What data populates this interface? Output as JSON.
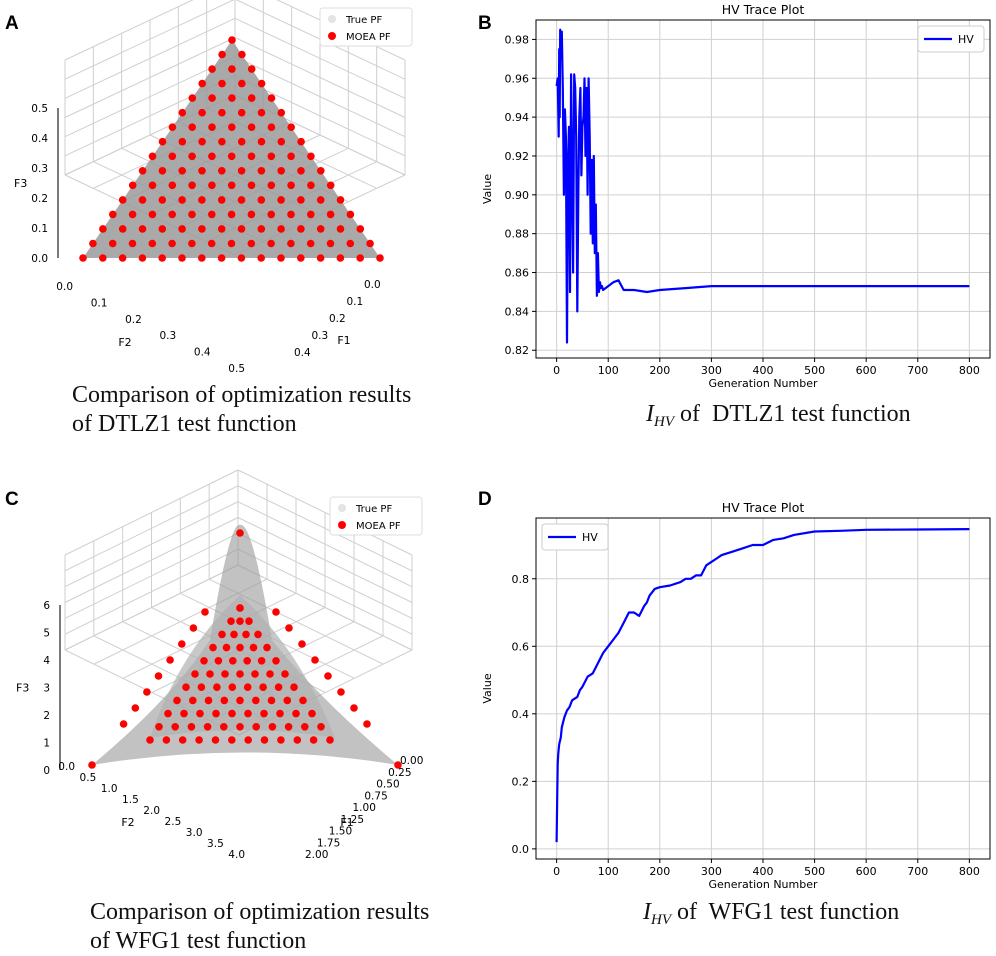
{
  "panels": {
    "A": {
      "letter": "A",
      "caption_line1": "Comparison of optimization results",
      "caption_line2": "of DTLZ1 test function"
    },
    "B": {
      "letter": "B",
      "caption_main": "I",
      "caption_sub": "HV",
      "caption_rest": " of  DTLZ1 test function"
    },
    "C": {
      "letter": "C",
      "caption_line1": "Comparison of optimization results",
      "caption_line2": "of WFG1 test function"
    },
    "D": {
      "letter": "D",
      "caption_main": "I",
      "caption_sub": "HV",
      "caption_rest": " of  WFG1 test function"
    }
  },
  "colors": {
    "true_pf": "#9a9a9a",
    "moea_pf": "#ff0000",
    "hv_line": "#0000ff",
    "grid": "#d0d0d0",
    "axis": "#000000"
  },
  "chart_data": [
    {
      "id": "A",
      "type": "scatter",
      "title": "",
      "xlabel": "F1",
      "ylabel": "F2",
      "zlabel": "F3",
      "xticks": [
        "0.0",
        "0.1",
        "0.2",
        "0.3",
        "0.4"
      ],
      "yticks": [
        "0.0",
        "0.1",
        "0.2",
        "0.3",
        "0.4",
        "0.5"
      ],
      "zticks": [
        "0.0",
        "0.1",
        "0.2",
        "0.3",
        "0.4",
        "0.5"
      ],
      "xlim": [
        0,
        0.5
      ],
      "ylim": [
        0,
        0.5
      ],
      "zlim": [
        0,
        0.5
      ],
      "legend": [
        "True PF",
        "MOEA PF"
      ],
      "legend_loc": "top-right",
      "series": [
        {
          "name": "True PF",
          "description_surface": "plane F1+F2+F3=0.5"
        },
        {
          "name": "MOEA PF",
          "grid_divisions": 15,
          "sum": 0.5
        }
      ]
    },
    {
      "id": "B",
      "type": "line",
      "title": "HV Trace Plot",
      "xlabel": "Generation Number",
      "ylabel": "Value",
      "xlim": [
        -40,
        840
      ],
      "ylim": [
        0.816,
        0.99
      ],
      "xticks": [
        "0",
        "100",
        "200",
        "300",
        "400",
        "500",
        "600",
        "700",
        "800"
      ],
      "yticks": [
        "0.82",
        "0.84",
        "0.86",
        "0.88",
        "0.90",
        "0.92",
        "0.94",
        "0.96",
        "0.98"
      ],
      "legend": [
        "HV"
      ],
      "legend_loc": "top-right",
      "series": [
        {
          "name": "HV",
          "x": [
            0,
            2,
            4,
            5,
            6,
            7,
            8,
            10,
            12,
            14,
            16,
            18,
            20,
            22,
            24,
            26,
            28,
            30,
            32,
            34,
            36,
            38,
            40,
            42,
            44,
            46,
            48,
            50,
            52,
            54,
            56,
            58,
            60,
            62,
            64,
            66,
            68,
            70,
            72,
            74,
            76,
            78,
            80,
            82,
            84,
            86,
            88,
            90,
            95,
            100,
            110,
            120,
            130,
            150,
            175,
            200,
            250,
            300,
            400,
            500,
            600,
            700,
            800
          ],
          "y": [
            0.956,
            0.96,
            0.93,
            0.975,
            0.94,
            0.985,
            0.97,
            0.984,
            0.955,
            0.9,
            0.944,
            0.93,
            0.824,
            0.918,
            0.935,
            0.85,
            0.962,
            0.91,
            0.86,
            0.962,
            0.955,
            0.93,
            0.84,
            0.9,
            0.94,
            0.955,
            0.91,
            0.935,
            0.94,
            0.96,
            0.92,
            0.955,
            0.9,
            0.96,
            0.93,
            0.88,
            0.918,
            0.875,
            0.92,
            0.87,
            0.895,
            0.848,
            0.87,
            0.85,
            0.855,
            0.852,
            0.853,
            0.851,
            0.852,
            0.853,
            0.855,
            0.856,
            0.851,
            0.851,
            0.85,
            0.851,
            0.852,
            0.853,
            0.853,
            0.853,
            0.853,
            0.853,
            0.853
          ]
        }
      ]
    },
    {
      "id": "C",
      "type": "scatter",
      "title": "",
      "xlabel": "F1",
      "ylabel": "F2",
      "zlabel": "F3",
      "xticks": [
        "0.00",
        "0.25",
        "0.50",
        "0.75",
        "1.00",
        "1.25",
        "1.50",
        "1.75",
        "2.00"
      ],
      "yticks": [
        "0.0",
        "0.5",
        "1.0",
        "1.5",
        "2.0",
        "2.5",
        "3.0",
        "3.5",
        "4.0"
      ],
      "zticks": [
        "0",
        "1",
        "2",
        "3",
        "4",
        "5",
        "6"
      ],
      "xlim": [
        0,
        2
      ],
      "ylim": [
        0,
        4
      ],
      "zlim": [
        0,
        6
      ],
      "legend": [
        "True PF",
        "MOEA PF"
      ],
      "legend_loc": "top-right",
      "series": [
        {
          "name": "True PF",
          "description_surface": "WFG1 front"
        },
        {
          "name": "MOEA PF",
          "rows": 10
        }
      ]
    },
    {
      "id": "D",
      "type": "line",
      "title": "HV Trace Plot",
      "xlabel": "Generation Number",
      "ylabel": "Value",
      "xlim": [
        -40,
        840
      ],
      "ylim": [
        -0.03,
        0.98
      ],
      "xticks": [
        "0",
        "100",
        "200",
        "300",
        "400",
        "500",
        "600",
        "700",
        "800"
      ],
      "yticks": [
        "0.0",
        "0.2",
        "0.4",
        "0.6",
        "0.8"
      ],
      "legend": [
        "HV"
      ],
      "legend_loc": "top-left",
      "series": [
        {
          "name": "HV",
          "x": [
            0,
            1,
            2,
            3,
            5,
            8,
            10,
            15,
            20,
            25,
            30,
            40,
            45,
            50,
            60,
            70,
            80,
            90,
            100,
            110,
            120,
            130,
            140,
            150,
            160,
            170,
            175,
            180,
            190,
            200,
            220,
            240,
            250,
            260,
            270,
            280,
            290,
            300,
            310,
            320,
            340,
            360,
            380,
            400,
            420,
            440,
            460,
            500,
            550,
            600,
            700,
            800
          ],
          "y": [
            0.02,
            0.15,
            0.25,
            0.28,
            0.31,
            0.33,
            0.36,
            0.39,
            0.41,
            0.42,
            0.44,
            0.45,
            0.47,
            0.48,
            0.51,
            0.52,
            0.55,
            0.58,
            0.6,
            0.62,
            0.64,
            0.67,
            0.7,
            0.7,
            0.69,
            0.72,
            0.73,
            0.75,
            0.77,
            0.775,
            0.78,
            0.79,
            0.8,
            0.8,
            0.81,
            0.81,
            0.84,
            0.85,
            0.86,
            0.87,
            0.88,
            0.89,
            0.9,
            0.9,
            0.915,
            0.92,
            0.93,
            0.94,
            0.942,
            0.945,
            0.946,
            0.947
          ]
        }
      ]
    }
  ]
}
